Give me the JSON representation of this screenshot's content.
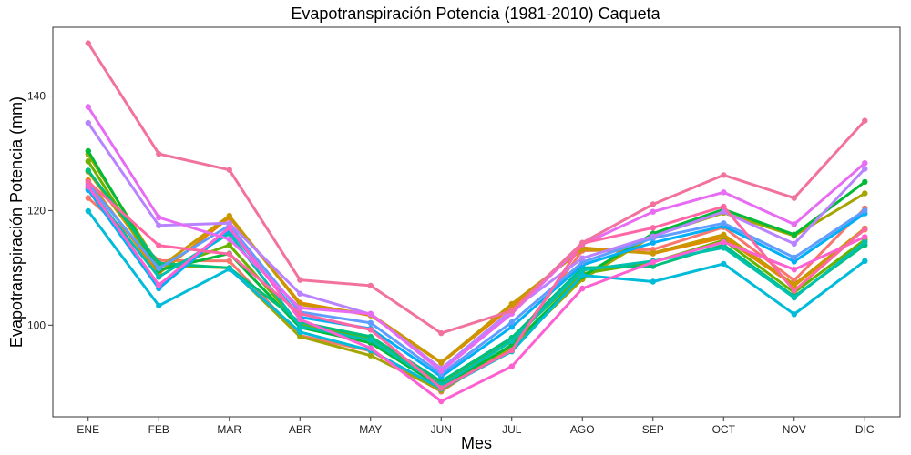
{
  "chart_data": {
    "type": "line",
    "title": "Evapotranspiración Potencia (1981-2010)  Caqueta",
    "xlabel": "Mes",
    "ylabel": "Evapotranspiración Potencia  (mm)",
    "categories": [
      "ENE",
      "FEB",
      "MAR",
      "ABR",
      "MAY",
      "JUN",
      "JUL",
      "AGO",
      "SEP",
      "OCT",
      "NOV",
      "DIC"
    ],
    "ylim": [
      84,
      152
    ],
    "yticks": [
      100,
      120,
      140
    ],
    "grid": false,
    "legend": "none",
    "series": [
      {
        "color": "#F8766D",
        "values": [
          122.2,
          111.3,
          111.2,
          98.2,
          95.5,
          88.4,
          96.6,
          113.0,
          113.2,
          117.1,
          107.8,
          120.4
        ]
      },
      {
        "color": "#E58700",
        "values": [
          125.3,
          109.0,
          118.8,
          103.9,
          101.7,
          93.4,
          103.2,
          113.5,
          112.5,
          115.3,
          106.9,
          116.7
        ]
      },
      {
        "color": "#C99800",
        "values": [
          126.8,
          110.0,
          119.1,
          103.6,
          101.9,
          93.5,
          103.7,
          113.2,
          112.6,
          115.8,
          107.1,
          116.9
        ]
      },
      {
        "color": "#A3A500",
        "values": [
          129.8,
          110.4,
          110.0,
          98.0,
          94.7,
          88.6,
          96.0,
          108.0,
          115.6,
          119.6,
          115.6,
          123.0
        ]
      },
      {
        "color": "#6BB100",
        "values": [
          128.6,
          109.5,
          114.0,
          100.0,
          97.7,
          89.8,
          97.5,
          109.0,
          111.0,
          114.8,
          105.7,
          114.9
        ]
      },
      {
        "color": "#00BA38",
        "values": [
          130.4,
          109.6,
          112.5,
          99.6,
          96.9,
          89.2,
          96.5,
          108.5,
          116.0,
          120.2,
          115.8,
          125.0
        ]
      },
      {
        "color": "#00BF7D",
        "values": [
          127.0,
          110.8,
          110.0,
          100.5,
          98.0,
          90.2,
          97.8,
          110.0,
          110.3,
          114.0,
          105.0,
          114.0
        ]
      },
      {
        "color": "#00C0AF",
        "values": [
          124.0,
          108.4,
          116.0,
          99.8,
          97.4,
          89.5,
          97.2,
          109.6,
          111.2,
          113.5,
          104.8,
          114.5
        ]
      },
      {
        "color": "#00BCD8",
        "values": [
          119.9,
          103.4,
          109.8,
          98.8,
          95.6,
          88.9,
          95.4,
          108.7,
          107.6,
          110.7,
          101.9,
          111.2
        ]
      },
      {
        "color": "#00B0F6",
        "values": [
          123.6,
          106.4,
          116.7,
          101.4,
          99.4,
          91.0,
          99.7,
          110.5,
          114.4,
          117.3,
          111.1,
          119.5
        ]
      },
      {
        "color": "#619CFF",
        "values": [
          124.6,
          109.9,
          117.4,
          102.3,
          100.4,
          91.5,
          100.5,
          111.0,
          115.2,
          117.8,
          111.8,
          120.0
        ]
      },
      {
        "color": "#B983FF",
        "values": [
          135.3,
          117.4,
          117.8,
          105.5,
          101.9,
          92.4,
          102.6,
          111.7,
          115.5,
          119.8,
          114.2,
          127.3
        ]
      },
      {
        "color": "#E76BF3",
        "values": [
          138.1,
          118.8,
          115.0,
          103.0,
          102.0,
          92.0,
          102.0,
          114.1,
          119.8,
          123.2,
          117.6,
          128.3
        ]
      },
      {
        "color": "#FD61D1",
        "values": [
          124.2,
          107.0,
          117.0,
          101.0,
          96.0,
          86.7,
          92.8,
          106.4,
          111.0,
          114.5,
          109.7,
          115.4
        ]
      },
      {
        "color": "#FF67A4",
        "values": [
          125.0,
          113.9,
          112.4,
          102.0,
          99.2,
          89.0,
          95.6,
          114.3,
          117.0,
          120.7,
          106.0,
          116.8
        ]
      },
      {
        "color": "#F2729E",
        "values": [
          149.2,
          129.9,
          127.1,
          107.9,
          106.9,
          98.6,
          102.5,
          114.4,
          121.1,
          126.2,
          122.2,
          135.7
        ]
      }
    ]
  }
}
